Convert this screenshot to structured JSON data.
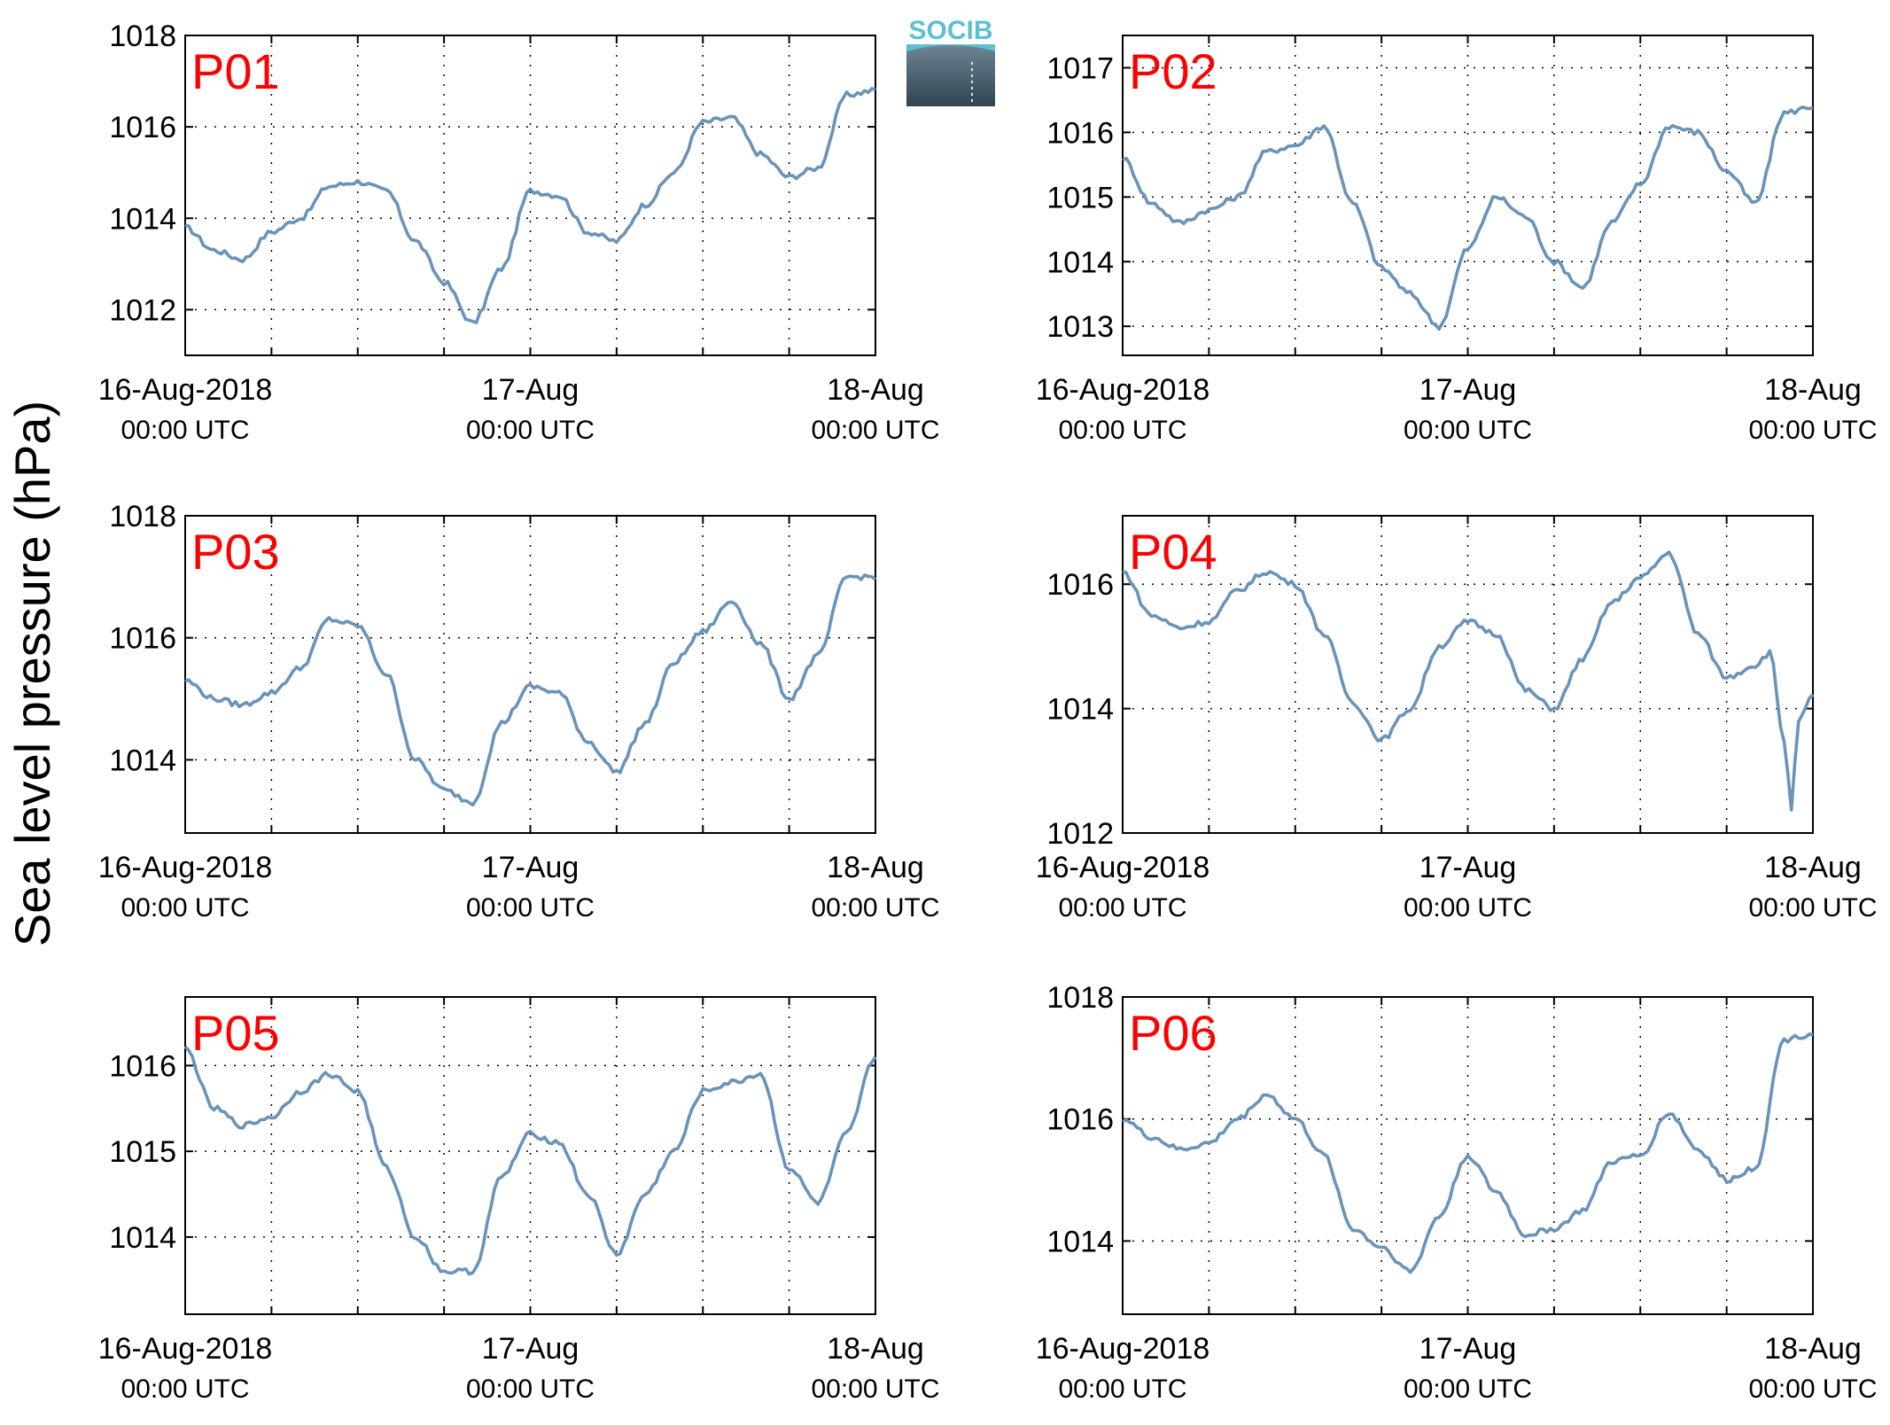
{
  "figure": {
    "ylabel": "Sea level pressure (hPa)",
    "logo_text": "SOCIB"
  },
  "colors": {
    "line": "#6a93b9",
    "tag": "#ff0000",
    "logo_top": "#5cc0d2",
    "logo_dark": "#2f4350"
  },
  "chart_data": [
    {
      "type": "line",
      "name": "P01",
      "x_tick_labels": [
        "16-Aug-2018",
        "17-Aug",
        "18-Aug"
      ],
      "x_tick_sublabels": [
        "00:00 UTC",
        "00:00 UTC",
        "00:00 UTC"
      ],
      "x_range": [
        "2018-08-16 00:00",
        "2018-08-18 00:00"
      ],
      "yticks": [
        1012,
        1014,
        1016,
        1018
      ],
      "ylim": [
        1011,
        1018
      ],
      "grid": true,
      "series": [
        {
          "hours": [
            0,
            2,
            4,
            6,
            8,
            10,
            12,
            14,
            16,
            18,
            20,
            22,
            24,
            26,
            28,
            30,
            32,
            34,
            36,
            38,
            40,
            42,
            44,
            46,
            48
          ],
          "values": [
            1013.8,
            1013.3,
            1013.1,
            1013.7,
            1014.0,
            1014.7,
            1014.8,
            1014.6,
            1013.5,
            1012.6,
            1011.7,
            1012.9,
            1014.6,
            1014.5,
            1013.7,
            1013.5,
            1014.3,
            1015.0,
            1016.1,
            1016.2,
            1015.4,
            1014.9,
            1015.1,
            1016.7,
            1016.8
          ]
        }
      ]
    },
    {
      "type": "line",
      "name": "P02",
      "x_tick_labels": [
        "16-Aug-2018",
        "17-Aug",
        "18-Aug"
      ],
      "x_tick_sublabels": [
        "00:00 UTC",
        "00:00 UTC",
        "00:00 UTC"
      ],
      "x_range": [
        "2018-08-16 00:00",
        "2018-08-18 00:00"
      ],
      "yticks": [
        1013,
        1014,
        1015,
        1016,
        1017
      ],
      "ylim": [
        1012.55,
        1017.5
      ],
      "grid": true,
      "series": [
        {
          "hours": [
            0,
            2,
            4,
            6,
            8,
            10,
            12,
            14,
            16,
            18,
            20,
            22,
            24,
            26,
            28,
            30,
            32,
            34,
            36,
            38,
            40,
            42,
            44,
            46,
            48
          ],
          "values": [
            1015.6,
            1014.9,
            1014.6,
            1014.8,
            1015.0,
            1015.7,
            1015.8,
            1016.1,
            1014.9,
            1013.9,
            1013.5,
            1013.0,
            1014.2,
            1015.0,
            1014.7,
            1014.0,
            1013.6,
            1014.6,
            1015.2,
            1016.1,
            1016.0,
            1015.4,
            1014.9,
            1016.3,
            1016.4
          ]
        }
      ]
    },
    {
      "type": "line",
      "name": "P03",
      "x_tick_labels": [
        "16-Aug-2018",
        "17-Aug",
        "18-Aug"
      ],
      "x_tick_sublabels": [
        "00:00 UTC",
        "00:00 UTC",
        "00:00 UTC"
      ],
      "x_range": [
        "2018-08-16 00:00",
        "2018-08-18 00:00"
      ],
      "yticks": [
        1014,
        1016,
        1018
      ],
      "ylim": [
        1012.8,
        1018
      ],
      "grid": true,
      "series": [
        {
          "hours": [
            0,
            2,
            4,
            6,
            8,
            10,
            12,
            14,
            16,
            18,
            20,
            22,
            24,
            26,
            28,
            30,
            32,
            34,
            36,
            38,
            40,
            42,
            44,
            46,
            48
          ],
          "values": [
            1015.3,
            1015.0,
            1014.9,
            1015.1,
            1015.5,
            1016.3,
            1016.2,
            1015.4,
            1014.0,
            1013.5,
            1013.3,
            1014.6,
            1015.2,
            1015.1,
            1014.3,
            1013.8,
            1014.6,
            1015.6,
            1016.1,
            1016.6,
            1015.9,
            1015.0,
            1015.7,
            1017.0,
            1017.0
          ]
        }
      ]
    },
    {
      "type": "line",
      "name": "P04",
      "x_tick_labels": [
        "16-Aug-2018",
        "17-Aug",
        "18-Aug"
      ],
      "x_tick_sublabels": [
        "00:00 UTC",
        "00:00 UTC",
        "00:00 UTC"
      ],
      "x_range": [
        "2018-08-16 00:00",
        "2018-08-18 00:00"
      ],
      "yticks": [
        1012,
        1014,
        1016
      ],
      "ylim": [
        1012,
        1017.1
      ],
      "grid": true,
      "series": [
        {
          "hours": [
            0,
            2,
            4,
            6,
            8,
            10,
            12,
            14,
            16,
            18,
            20,
            22,
            24,
            26,
            28,
            30,
            32,
            34,
            36,
            38,
            40,
            42,
            44,
            45,
            46,
            46.5,
            47,
            48
          ],
          "values": [
            1016.2,
            1015.5,
            1015.3,
            1015.4,
            1015.9,
            1016.2,
            1016.0,
            1015.2,
            1014.1,
            1013.5,
            1014.0,
            1015.0,
            1015.4,
            1015.2,
            1014.3,
            1014.0,
            1014.8,
            1015.7,
            1016.1,
            1016.5,
            1015.2,
            1014.5,
            1014.7,
            1014.9,
            1013.5,
            1012.4,
            1013.8,
            1014.2
          ]
        }
      ]
    },
    {
      "type": "line",
      "name": "P05",
      "x_tick_labels": [
        "16-Aug-2018",
        "17-Aug",
        "18-Aug"
      ],
      "x_tick_sublabels": [
        "00:00 UTC",
        "00:00 UTC",
        "00:00 UTC"
      ],
      "x_range": [
        "2018-08-16 00:00",
        "2018-08-18 00:00"
      ],
      "yticks": [
        1014,
        1015,
        1016
      ],
      "ylim": [
        1013.1,
        1016.8
      ],
      "grid": true,
      "series": [
        {
          "hours": [
            0,
            2,
            4,
            6,
            8,
            10,
            12,
            14,
            16,
            18,
            20,
            22,
            24,
            26,
            28,
            30,
            32,
            34,
            36,
            38,
            40,
            42,
            44,
            46,
            48
          ],
          "values": [
            1016.2,
            1015.5,
            1015.3,
            1015.4,
            1015.7,
            1015.9,
            1015.7,
            1014.8,
            1014.0,
            1013.6,
            1013.6,
            1014.7,
            1015.2,
            1015.1,
            1014.5,
            1013.8,
            1014.5,
            1015.0,
            1015.7,
            1015.8,
            1015.9,
            1014.8,
            1014.4,
            1015.2,
            1016.1
          ]
        }
      ]
    },
    {
      "type": "line",
      "name": "P06",
      "x_tick_labels": [
        "16-Aug-2018",
        "17-Aug",
        "18-Aug"
      ],
      "x_tick_sublabels": [
        "00:00 UTC",
        "00:00 UTC",
        "00:00 UTC"
      ],
      "x_range": [
        "2018-08-16 00:00",
        "2018-08-18 00:00"
      ],
      "yticks": [
        1014,
        1016,
        1018
      ],
      "ylim": [
        1012.8,
        1018
      ],
      "grid": true,
      "series": [
        {
          "hours": [
            0,
            2,
            4,
            6,
            8,
            10,
            12,
            14,
            16,
            18,
            20,
            22,
            24,
            26,
            28,
            30,
            32,
            34,
            36,
            38,
            40,
            42,
            44,
            46,
            48
          ],
          "values": [
            1016.0,
            1015.7,
            1015.5,
            1015.6,
            1016.0,
            1016.4,
            1016.0,
            1015.4,
            1014.2,
            1013.9,
            1013.5,
            1014.4,
            1015.4,
            1014.8,
            1014.1,
            1014.2,
            1014.5,
            1015.3,
            1015.4,
            1016.1,
            1015.5,
            1015.0,
            1015.2,
            1017.3,
            1017.4
          ]
        }
      ]
    }
  ]
}
